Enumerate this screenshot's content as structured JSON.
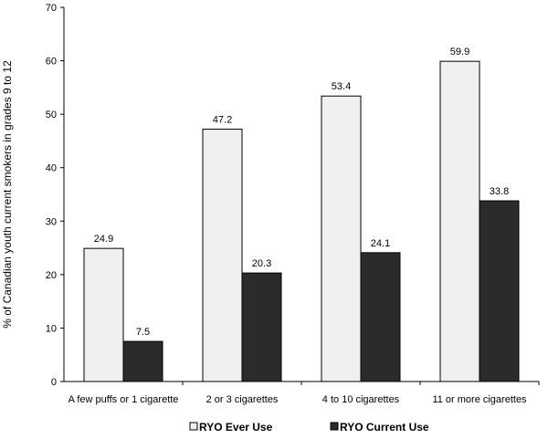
{
  "chart_data": {
    "type": "bar",
    "categories": [
      "A few puffs or 1 cigarette",
      "2 or 3 cigarettes",
      "4 to 10 cigarettes",
      "11 or more cigarettes"
    ],
    "series": [
      {
        "name": "RYO Ever Use",
        "values": [
          24.9,
          47.2,
          53.4,
          59.9
        ],
        "color": "#f0f0f0"
      },
      {
        "name": "RYO Current Use",
        "values": [
          7.5,
          20.3,
          24.1,
          33.8
        ],
        "color": "#2b2b2b"
      }
    ],
    "ylabel": "% of Canadian youth current smokers in grades 9 to 12",
    "ylim": [
      0,
      70
    ],
    "yticks": [
      0,
      10,
      20,
      30,
      40,
      50,
      60,
      70
    ],
    "data_labels": true,
    "grid": false,
    "legend": "bottom-center"
  }
}
